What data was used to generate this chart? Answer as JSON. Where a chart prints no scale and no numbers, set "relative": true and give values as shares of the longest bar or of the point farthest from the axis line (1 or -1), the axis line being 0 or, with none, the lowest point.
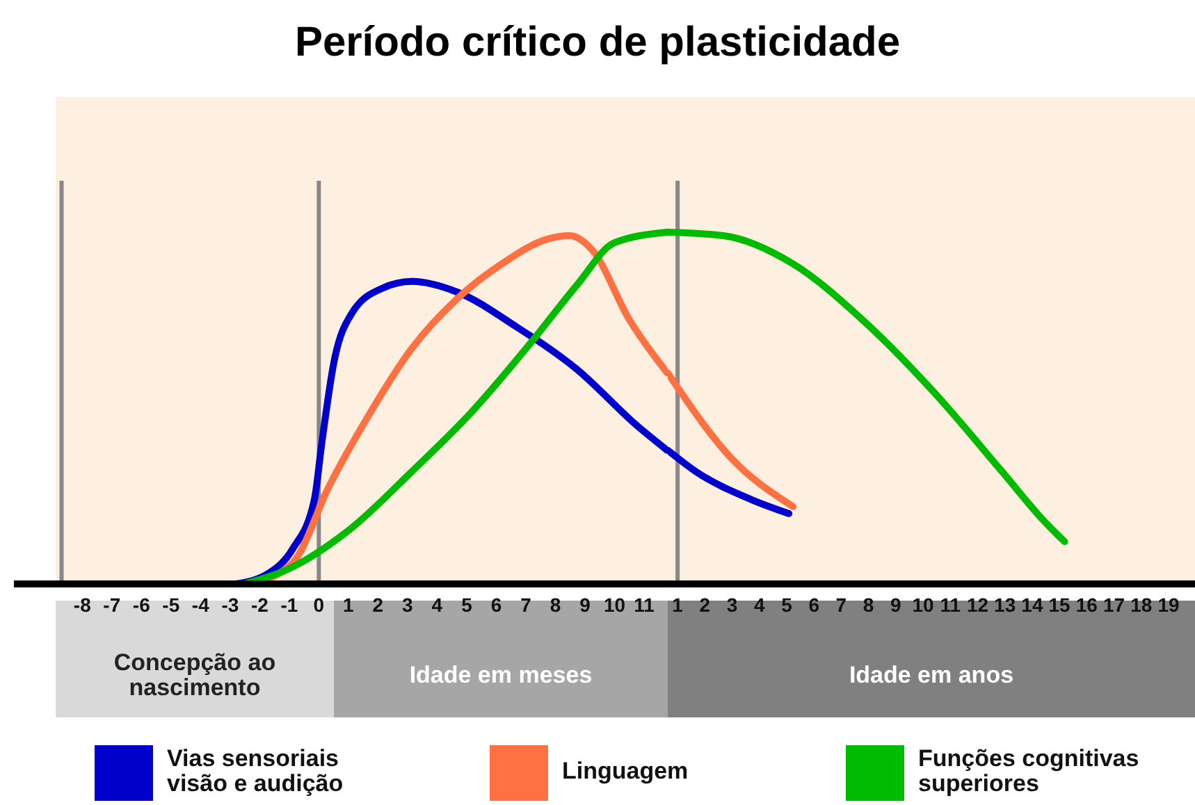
{
  "chart_data": [
    {
      "type": "line",
      "title": "Período crítico de plasticidade",
      "xlabel": "Idade em meses",
      "annotations": [
        "Concepção ao nascimento"
      ],
      "relative": true,
      "xlim": [
        -8.9,
        11.8
      ],
      "xticks": [
        -8,
        -7,
        -6,
        -5,
        -4,
        -3,
        -2,
        -1,
        0,
        1,
        2,
        3,
        4,
        5,
        6,
        7,
        8,
        9,
        10,
        11
      ],
      "legend": "bottom",
      "marker": "none",
      "line_style": "solid",
      "series": [
        {
          "name": "Vias sensoriais visão e audição",
          "color": "#0000cc",
          "x": [
            -2.81,
            -1.7,
            -0.88,
            -0.15,
            0.1,
            0.51,
            1.12,
            2.13,
            3.15,
            4.67,
            6.7,
            8.73,
            10.76,
            11.78
          ],
          "values": [
            0,
            0.03,
            0.1,
            0.24,
            0.4,
            0.63,
            0.77,
            0.84,
            0.86,
            0.83,
            0.73,
            0.61,
            0.45,
            0.38
          ]
        },
        {
          "name": "Linguagem",
          "color": "#ff7043",
          "x": [
            -2.32,
            -0.88,
            0.36,
            1.62,
            3.15,
            4.67,
            6.19,
            7.72,
            8.48,
            9.24,
            10.51,
            11.78
          ],
          "values": [
            0,
            0.06,
            0.28,
            0.47,
            0.67,
            0.81,
            0.91,
            0.98,
            0.99,
            0.95,
            0.75,
            0.6
          ]
        },
        {
          "name": "Funções cognitivas superiores",
          "color": "#00bb00",
          "x": [
            -2.53,
            -1.09,
            1.12,
            3.15,
            5.18,
            7.21,
            8.73,
            10,
            11.78
          ],
          "values": [
            0,
            0.04,
            0.16,
            0.32,
            0.49,
            0.69,
            0.85,
            0.97,
            1
          ]
        }
      ],
      "ref_lines": [
        {
          "axis": "x",
          "value": -8.7,
          "color": "#888888"
        },
        {
          "axis": "x",
          "value": 0,
          "color": "#888888"
        }
      ]
    },
    {
      "type": "line",
      "xlabel": "Idade em anos",
      "relative": true,
      "xlim": [
        0.64,
        19.97
      ],
      "xticks": [
        1,
        2,
        3,
        4,
        5,
        6,
        7,
        8,
        9,
        10,
        11,
        12,
        13,
        14,
        15,
        16,
        17,
        18,
        19
      ],
      "marker": "none",
      "line_style": "solid",
      "series": [
        {
          "color": "#0000cc",
          "x": [
            0.64,
            1.66,
            3.7,
            5.08
          ],
          "values": [
            0.38,
            0.32,
            0.24,
            0.2
          ]
        },
        {
          "color": "#ff7043",
          "x": [
            0.64,
            0.9,
            2.94,
            5.23
          ],
          "values": [
            0.6,
            0.57,
            0.36,
            0.22
          ]
        },
        {
          "color": "#00bb00",
          "x": [
            0.64,
            2.68,
            5.23,
            7.79,
            10.34,
            12.89,
            14.42,
            15.19
          ],
          "values": [
            1,
            0.99,
            0.91,
            0.75,
            0.55,
            0.32,
            0.18,
            0.12
          ]
        }
      ],
      "ref_lines": [
        {
          "axis": "x",
          "value": 1,
          "color": "#888888"
        }
      ]
    }
  ]
}
